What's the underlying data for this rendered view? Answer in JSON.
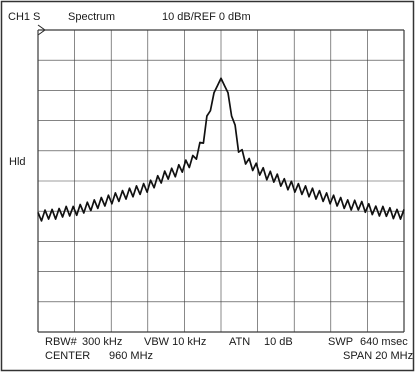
{
  "header": {
    "channel": "CH1 S",
    "mode": "Spectrum",
    "scale_ref": "10 dB/REF 0 dBm"
  },
  "side_label": "Hld",
  "footer": {
    "rbw_label": "RBW#",
    "rbw_value": "300 kHz",
    "vbw": "VBW 10 kHz",
    "atn_label": "ATN",
    "atn_value": "10 dB",
    "swp_label": "SWP",
    "swp_value": "640 msec",
    "center_label": "CENTER",
    "center_value": "960 MHz",
    "span": "SPAN 20 MHz"
  },
  "chart_data": {
    "type": "line",
    "grid": true,
    "ref_level_dbm": 0,
    "db_per_div": 10,
    "center_mhz": 960,
    "span_mhz": 20,
    "y_divisions": 10,
    "x_divisions": 10,
    "xlim": [
      950,
      970
    ],
    "ylim": [
      -100,
      0
    ],
    "series": [
      {
        "x": [
          950.0,
          950.5,
          951.0,
          951.5,
          952.0,
          952.5,
          953.0,
          953.5,
          954.0,
          954.5,
          955.0,
          955.5,
          956.0,
          956.5,
          957.0,
          957.5,
          958.0,
          958.5,
          959.0,
          959.3,
          959.6,
          960.0,
          960.4,
          960.7,
          961.0,
          961.5,
          962.0,
          962.5,
          963.0,
          963.5,
          964.0,
          964.5,
          965.0,
          965.5,
          966.0,
          966.5,
          967.0,
          967.5,
          968.0,
          968.5,
          969.0,
          969.5,
          970.0
        ],
        "y": [
          -62,
          -61,
          -61,
          -60,
          -60,
          -59,
          -58,
          -57,
          -56,
          -55,
          -54,
          -53,
          -52,
          -50,
          -48,
          -47,
          -45,
          -43,
          -37,
          -28,
          -21,
          -16,
          -21,
          -31,
          -40,
          -44,
          -46,
          -48,
          -49,
          -51,
          -52,
          -53,
          -54,
          -55,
          -56,
          -57,
          -58,
          -58,
          -59,
          -60,
          -60,
          -61,
          -61
        ]
      }
    ]
  }
}
